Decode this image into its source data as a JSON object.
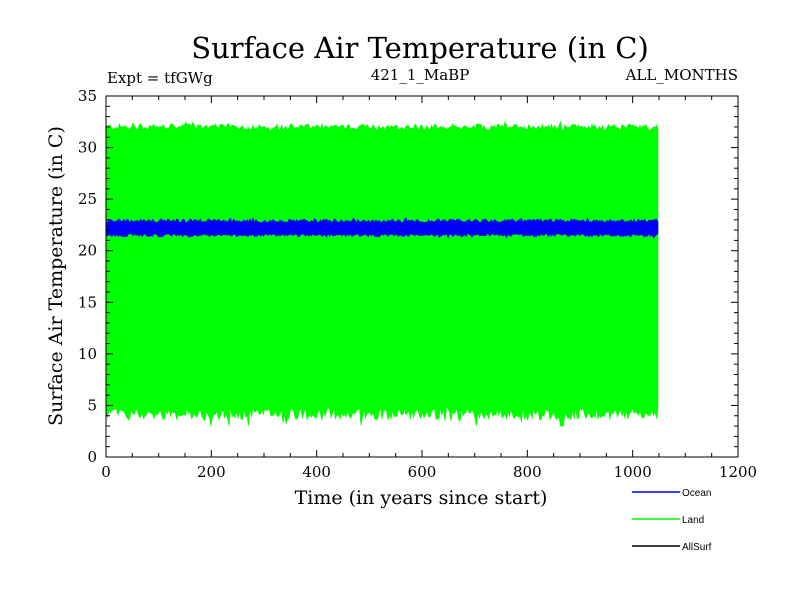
{
  "chart_data": {
    "type": "line",
    "title": "Surface Air Temperature (in C)",
    "subtitle_left": "Expt = tfGWg",
    "subtitle_center": "421_1_MaBP",
    "subtitle_right": "ALL_MONTHS",
    "xlabel": "Time (in years since start)",
    "ylabel": "Surface Air Temperature (in C)",
    "xlim": [
      0,
      1200
    ],
    "ylim": [
      0,
      35
    ],
    "xticks": [
      0,
      200,
      400,
      600,
      800,
      1000,
      1200
    ],
    "yticks": [
      0,
      5,
      10,
      15,
      20,
      25,
      30,
      35
    ],
    "x_range": [
      0,
      1050
    ],
    "series": [
      {
        "name": "Land",
        "color": "#00ff00",
        "band_min": 3.0,
        "band_max": 32.5,
        "typical_low": 4.2,
        "typical_high": 32.0
      },
      {
        "name": "Ocean",
        "color": "#0000ff",
        "band_min": 21.2,
        "band_max": 23.2,
        "typical_low": 21.5,
        "typical_high": 22.9
      },
      {
        "name": "AllSurf",
        "color": "#000000"
      }
    ],
    "legend": {
      "placement": "bottom-right",
      "entries": [
        "Ocean",
        "Land",
        "AllSurf"
      ]
    }
  }
}
